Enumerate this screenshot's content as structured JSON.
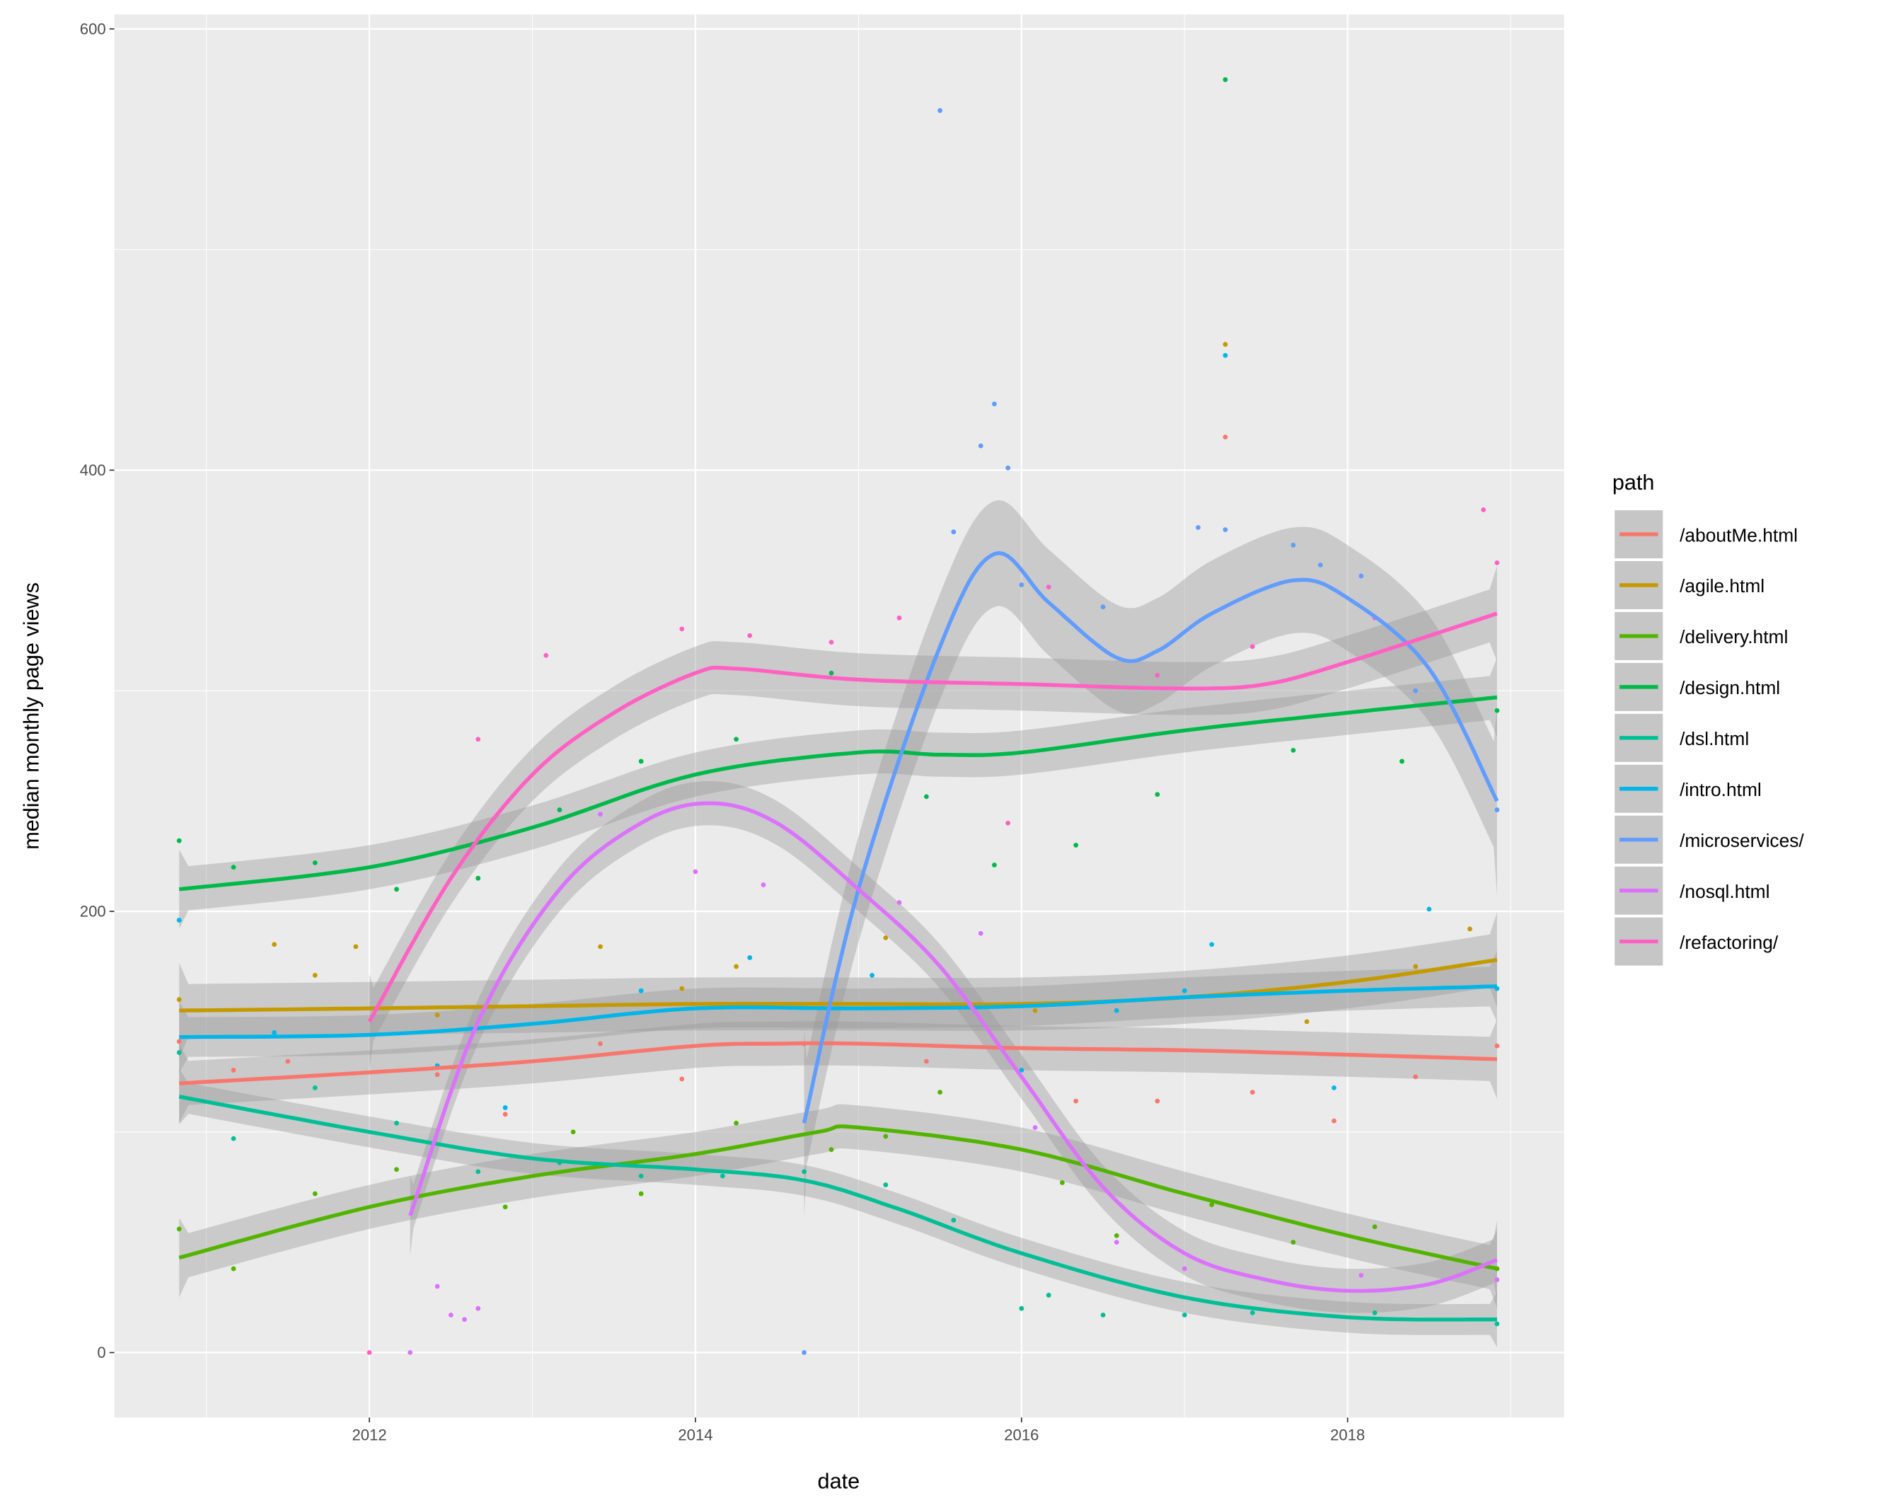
{
  "chart_data": {
    "type": "scatter",
    "geom": "points with loess smooth lines and confidence ribbons",
    "xlabel": "date",
    "ylabel": "median monthly page views",
    "xlim": [
      "2010-07",
      "2019-05"
    ],
    "ylim": [
      -30,
      605
    ],
    "x_ticks": [
      "2012",
      "2014",
      "2016",
      "2018"
    ],
    "y_ticks": [
      0,
      200,
      400,
      600
    ],
    "grid": true,
    "legend": {
      "title": "path",
      "placement": "right"
    },
    "series": [
      {
        "name": "/aboutMe.html",
        "color": "#F8766D",
        "ci": 10,
        "smooth": [
          [
            "2010-11",
            122
          ],
          [
            "2012-01",
            127
          ],
          [
            "2013-01",
            132
          ],
          [
            "2014-01",
            139
          ],
          [
            "2014-07",
            140
          ],
          [
            "2015-01",
            140
          ],
          [
            "2016-01",
            138
          ],
          [
            "2017-01",
            137
          ],
          [
            "2018-01",
            135
          ],
          [
            "2018-12",
            133
          ]
        ],
        "points": [
          [
            "2010-11",
            141
          ],
          [
            "2011-03",
            128
          ],
          [
            "2011-07",
            132
          ],
          [
            "2012-06",
            126
          ],
          [
            "2012-11",
            108
          ],
          [
            "2013-06",
            140
          ],
          [
            "2013-12",
            124
          ],
          [
            "2014-09",
            140
          ],
          [
            "2015-06",
            132
          ],
          [
            "2016-05",
            114
          ],
          [
            "2016-11",
            114
          ],
          [
            "2017-04",
            415
          ],
          [
            "2017-06",
            118
          ],
          [
            "2017-12",
            105
          ],
          [
            "2018-06",
            125
          ],
          [
            "2018-12",
            139
          ]
        ]
      },
      {
        "name": "/agile.html",
        "color": "#C49A00",
        "ci": 12,
        "smooth": [
          [
            "2010-11",
            155
          ],
          [
            "2012-01",
            156
          ],
          [
            "2013-01",
            157
          ],
          [
            "2014-01",
            158
          ],
          [
            "2015-01",
            158
          ],
          [
            "2016-01",
            158
          ],
          [
            "2017-01",
            161
          ],
          [
            "2018-01",
            168
          ],
          [
            "2018-12",
            178
          ]
        ],
        "points": [
          [
            "2010-11",
            160
          ],
          [
            "2011-06",
            185
          ],
          [
            "2011-09",
            171
          ],
          [
            "2011-12",
            184
          ],
          [
            "2012-06",
            153
          ],
          [
            "2013-06",
            184
          ],
          [
            "2013-12",
            165
          ],
          [
            "2014-04",
            175
          ],
          [
            "2015-03",
            188
          ],
          [
            "2016-02",
            155
          ],
          [
            "2017-04",
            457
          ],
          [
            "2017-10",
            150
          ],
          [
            "2018-06",
            175
          ],
          [
            "2018-10",
            192
          ]
        ]
      },
      {
        "name": "/delivery.html",
        "color": "#53B400",
        "ci": 10,
        "smooth": [
          [
            "2010-11",
            43
          ],
          [
            "2012-01",
            66
          ],
          [
            "2013-01",
            80
          ],
          [
            "2014-01",
            90
          ],
          [
            "2014-10",
            100
          ],
          [
            "2015-01",
            102
          ],
          [
            "2016-01",
            92
          ],
          [
            "2017-01",
            72
          ],
          [
            "2018-01",
            53
          ],
          [
            "2018-12",
            38
          ]
        ],
        "points": [
          [
            "2010-11",
            56
          ],
          [
            "2011-03",
            38
          ],
          [
            "2011-09",
            72
          ],
          [
            "2012-03",
            83
          ],
          [
            "2012-11",
            66
          ],
          [
            "2013-04",
            100
          ],
          [
            "2013-09",
            72
          ],
          [
            "2014-04",
            104
          ],
          [
            "2014-11",
            92
          ],
          [
            "2015-03",
            98
          ],
          [
            "2015-07",
            118
          ],
          [
            "2016-04",
            77
          ],
          [
            "2016-08",
            53
          ],
          [
            "2017-03",
            67
          ],
          [
            "2017-09",
            50
          ],
          [
            "2018-03",
            57
          ],
          [
            "2018-12",
            38
          ]
        ]
      },
      {
        "name": "/design.html",
        "color": "#00B94A",
        "ci": 10,
        "smooth": [
          [
            "2010-11",
            210
          ],
          [
            "2012-01",
            220
          ],
          [
            "2013-01",
            238
          ],
          [
            "2014-01",
            262
          ],
          [
            "2015-01",
            272
          ],
          [
            "2015-07",
            271
          ],
          [
            "2016-01",
            272
          ],
          [
            "2017-01",
            282
          ],
          [
            "2018-01",
            290
          ],
          [
            "2018-12",
            297
          ]
        ],
        "points": [
          [
            "2010-11",
            232
          ],
          [
            "2011-03",
            220
          ],
          [
            "2011-09",
            222
          ],
          [
            "2012-03",
            210
          ],
          [
            "2012-09",
            215
          ],
          [
            "2013-03",
            246
          ],
          [
            "2013-09",
            268
          ],
          [
            "2014-04",
            278
          ],
          [
            "2014-11",
            308
          ],
          [
            "2015-06",
            252
          ],
          [
            "2015-11",
            221
          ],
          [
            "2016-05",
            230
          ],
          [
            "2016-11",
            253
          ],
          [
            "2017-04",
            577
          ],
          [
            "2017-09",
            273
          ],
          [
            "2018-05",
            268
          ],
          [
            "2018-12",
            291
          ]
        ]
      },
      {
        "name": "/dsl.html",
        "color": "#00BF96",
        "ci": 7,
        "smooth": [
          [
            "2010-11",
            116
          ],
          [
            "2012-01",
            100
          ],
          [
            "2013-01",
            88
          ],
          [
            "2014-01",
            83
          ],
          [
            "2014-09",
            78
          ],
          [
            "2015-04",
            65
          ],
          [
            "2016-01",
            45
          ],
          [
            "2017-01",
            25
          ],
          [
            "2018-01",
            16
          ],
          [
            "2018-12",
            15
          ]
        ],
        "points": [
          [
            "2010-11",
            136
          ],
          [
            "2011-03",
            97
          ],
          [
            "2011-09",
            120
          ],
          [
            "2012-03",
            104
          ],
          [
            "2012-09",
            82
          ],
          [
            "2013-03",
            86
          ],
          [
            "2013-09",
            80
          ],
          [
            "2014-03",
            80
          ],
          [
            "2014-09",
            82
          ],
          [
            "2015-03",
            76
          ],
          [
            "2015-08",
            60
          ],
          [
            "2016-01",
            20
          ],
          [
            "2016-03",
            26
          ],
          [
            "2016-07",
            17
          ],
          [
            "2017-01",
            17
          ],
          [
            "2017-06",
            18
          ],
          [
            "2018-03",
            18
          ],
          [
            "2018-12",
            13
          ]
        ]
      },
      {
        "name": "/intro.html",
        "color": "#00B5E8",
        "ci": 9,
        "smooth": [
          [
            "2010-11",
            143
          ],
          [
            "2012-01",
            144
          ],
          [
            "2013-01",
            149
          ],
          [
            "2014-01",
            156
          ],
          [
            "2015-01",
            156
          ],
          [
            "2016-01",
            157
          ],
          [
            "2017-01",
            161
          ],
          [
            "2018-01",
            164
          ],
          [
            "2018-12",
            166
          ]
        ],
        "points": [
          [
            "2010-11",
            196
          ],
          [
            "2011-06",
            145
          ],
          [
            "2012-06",
            130
          ],
          [
            "2012-11",
            111
          ],
          [
            "2013-09",
            164
          ],
          [
            "2014-05",
            179
          ],
          [
            "2015-02",
            171
          ],
          [
            "2016-01",
            128
          ],
          [
            "2016-08",
            155
          ],
          [
            "2017-01",
            164
          ],
          [
            "2017-04",
            452
          ],
          [
            "2017-03",
            185
          ],
          [
            "2018-07",
            201
          ],
          [
            "2017-12",
            120
          ],
          [
            "2018-12",
            165
          ]
        ]
      },
      {
        "name": "/microservices/",
        "color": "#619CFF",
        "ci": 24,
        "smooth": [
          [
            "2014-09",
            104
          ],
          [
            "2015-01",
            210
          ],
          [
            "2015-07",
            320
          ],
          [
            "2015-11",
            362
          ],
          [
            "2016-03",
            340
          ],
          [
            "2016-08",
            315
          ],
          [
            "2016-11",
            318
          ],
          [
            "2017-03",
            335
          ],
          [
            "2017-09",
            350
          ],
          [
            "2018-01",
            342
          ],
          [
            "2018-07",
            310
          ],
          [
            "2018-12",
            250
          ]
        ],
        "points": [
          [
            "2014-09",
            0
          ],
          [
            "2015-07",
            563
          ],
          [
            "2015-08",
            372
          ],
          [
            "2015-10",
            411
          ],
          [
            "2015-11",
            430
          ],
          [
            "2015-12",
            401
          ],
          [
            "2016-01",
            348
          ],
          [
            "2016-07",
            338
          ],
          [
            "2017-02",
            374
          ],
          [
            "2017-04",
            373
          ],
          [
            "2017-09",
            366
          ],
          [
            "2017-11",
            357
          ],
          [
            "2018-02",
            352
          ],
          [
            "2018-06",
            300
          ],
          [
            "2018-12",
            246
          ]
        ]
      },
      {
        "name": "/nosql.html",
        "color": "#DB72FB",
        "ci": 10,
        "smooth": [
          [
            "2012-04",
            62
          ],
          [
            "2012-09",
            150
          ],
          [
            "2013-03",
            210
          ],
          [
            "2013-09",
            240
          ],
          [
            "2014-02",
            249
          ],
          [
            "2014-07",
            240
          ],
          [
            "2015-01",
            210
          ],
          [
            "2015-07",
            175
          ],
          [
            "2016-01",
            125
          ],
          [
            "2016-07",
            75
          ],
          [
            "2017-01",
            45
          ],
          [
            "2017-07",
            33
          ],
          [
            "2018-01",
            28
          ],
          [
            "2018-07",
            31
          ],
          [
            "2018-12",
            42
          ]
        ],
        "points": [
          [
            "2012-04",
            0
          ],
          [
            "2012-06",
            30
          ],
          [
            "2012-07",
            17
          ],
          [
            "2012-08",
            15
          ],
          [
            "2012-09",
            20
          ],
          [
            "2013-06",
            244
          ],
          [
            "2014-01",
            218
          ],
          [
            "2014-06",
            212
          ],
          [
            "2015-04",
            204
          ],
          [
            "2015-10",
            190
          ],
          [
            "2016-02",
            102
          ],
          [
            "2016-08",
            50
          ],
          [
            "2017-01",
            38
          ],
          [
            "2018-02",
            35
          ],
          [
            "2018-12",
            33
          ]
        ]
      },
      {
        "name": "/refactoring/",
        "color": "#FF61C3",
        "ci": 12,
        "smooth": [
          [
            "2012-01",
            150
          ],
          [
            "2012-07",
            215
          ],
          [
            "2013-01",
            262
          ],
          [
            "2013-07",
            290
          ],
          [
            "2014-01",
            308
          ],
          [
            "2014-04",
            310
          ],
          [
            "2015-01",
            305
          ],
          [
            "2016-01",
            303
          ],
          [
            "2017-01",
            301
          ],
          [
            "2017-07",
            303
          ],
          [
            "2018-01",
            313
          ],
          [
            "2018-12",
            335
          ]
        ],
        "points": [
          [
            "2012-01",
            0
          ],
          [
            "2012-09",
            278
          ],
          [
            "2013-02",
            316
          ],
          [
            "2013-12",
            328
          ],
          [
            "2014-05",
            325
          ],
          [
            "2014-11",
            322
          ],
          [
            "2015-04",
            333
          ],
          [
            "2015-12",
            240
          ],
          [
            "2016-03",
            347
          ],
          [
            "2016-11",
            307
          ],
          [
            "2017-06",
            320
          ],
          [
            "2018-03",
            333
          ],
          [
            "2018-11",
            382
          ],
          [
            "2018-12",
            358
          ]
        ]
      }
    ]
  }
}
